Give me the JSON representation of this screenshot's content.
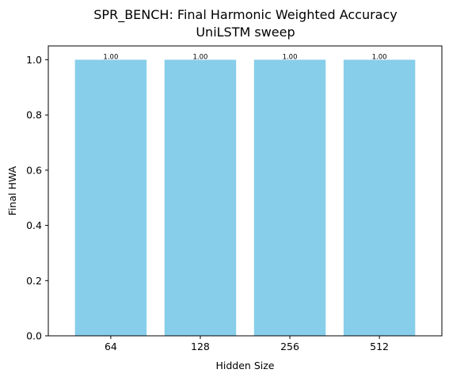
{
  "chart_data": {
    "type": "bar",
    "title": "SPR_BENCH: Final Harmonic Weighted Accuracy",
    "subtitle": "UniLSTM sweep",
    "xlabel": "Hidden Size",
    "ylabel": "Final HWA",
    "categories": [
      "64",
      "128",
      "256",
      "512"
    ],
    "values": [
      1.0,
      1.0,
      1.0,
      1.0
    ],
    "data_labels": [
      "1.00",
      "1.00",
      "1.00",
      "1.00"
    ],
    "ylim": [
      0,
      1.05
    ],
    "yticks": [
      0.0,
      0.2,
      0.4,
      0.6,
      0.8,
      1.0
    ],
    "ytick_labels": [
      "0.0",
      "0.2",
      "0.4",
      "0.6",
      "0.8",
      "1.0"
    ],
    "bar_color": "#87ceeb",
    "grid": false,
    "legend": "none"
  }
}
